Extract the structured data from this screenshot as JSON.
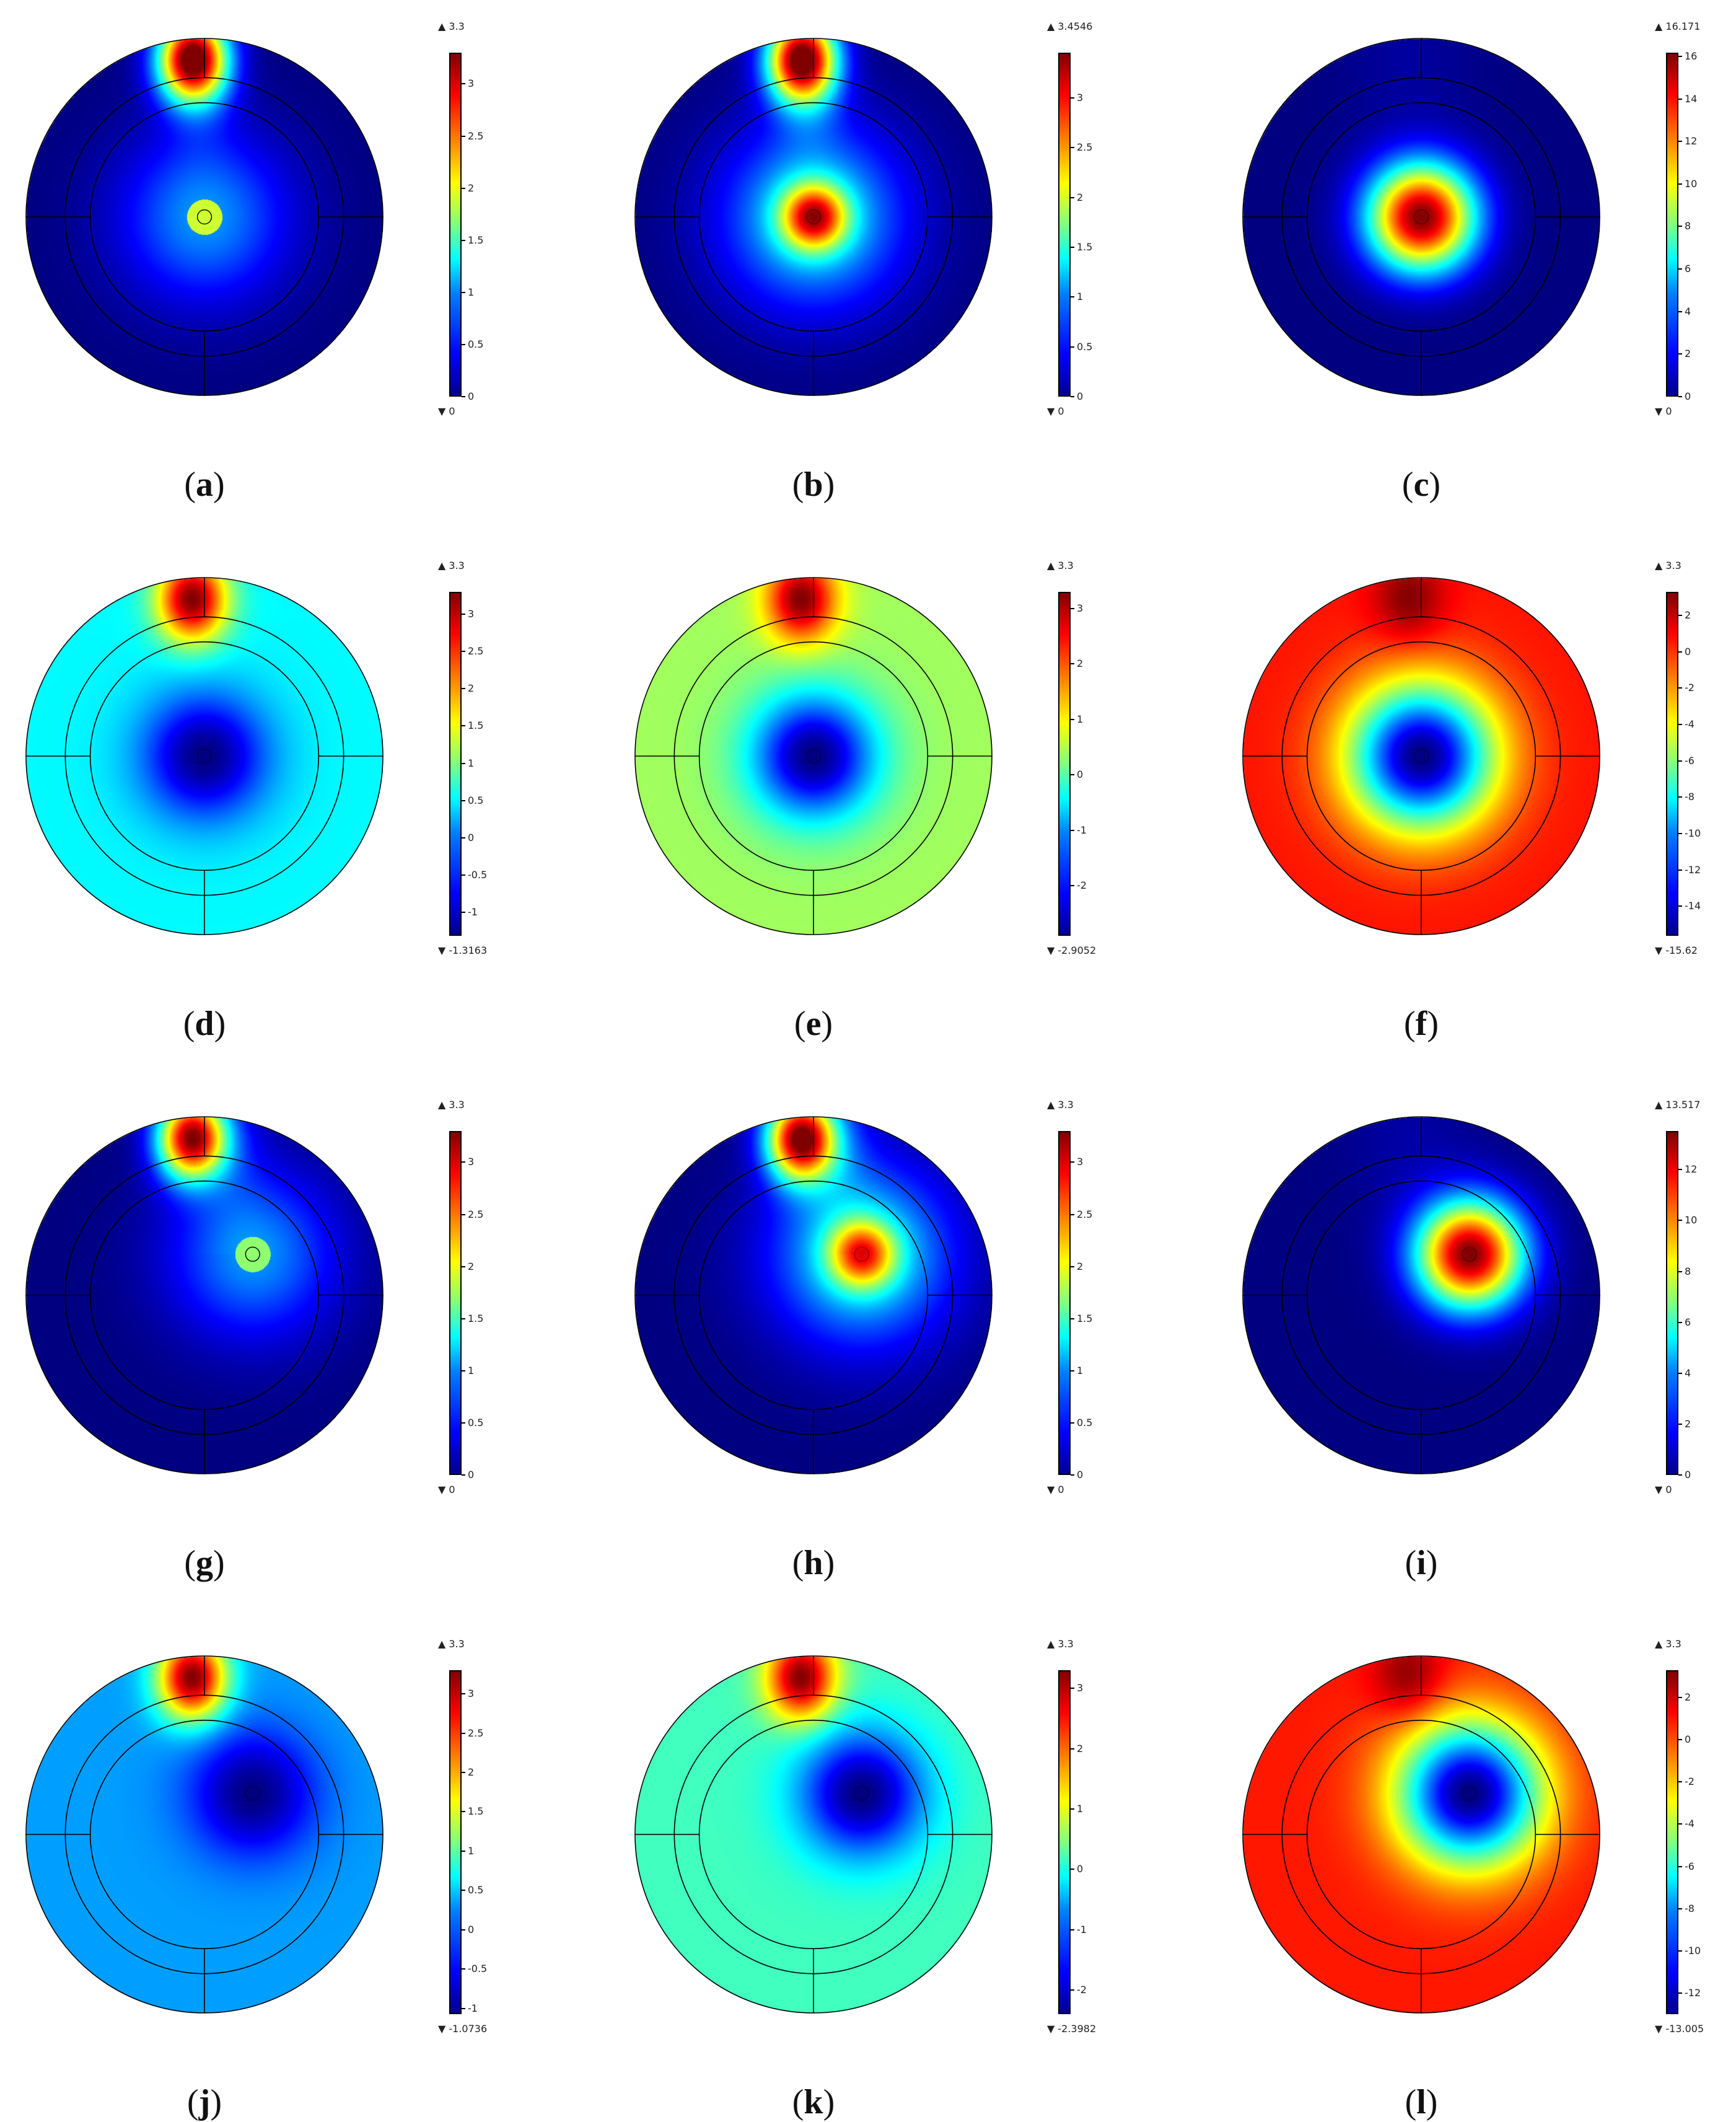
{
  "chart_data": [
    {
      "type": "heatmap",
      "label": "a",
      "fieldmax_text": "3.3",
      "fieldmin_text": "0",
      "vmin": 0,
      "vmax": 3.3,
      "ticks": [
        "0",
        "0.5",
        "1",
        "1.5",
        "2",
        "2.5",
        "3"
      ],
      "tickvalues": [
        0,
        0.5,
        1,
        1.5,
        2,
        2.5,
        3
      ],
      "source": {
        "x": 0,
        "y": 0,
        "radius": 0.18,
        "value": 1.9,
        "outlined": true
      },
      "electrode_value": 3.3,
      "background_value": 0.0,
      "pattern": "conductance"
    },
    {
      "type": "heatmap",
      "label": "b",
      "fieldmax_text": "3.4546",
      "fieldmin_text": "0",
      "vmin": 0,
      "vmax": 3.4546,
      "ticks": [
        "0",
        "0.5",
        "1",
        "1.5",
        "2",
        "2.5",
        "3"
      ],
      "tickvalues": [
        0,
        0.5,
        1,
        1.5,
        2,
        2.5,
        3
      ],
      "source": {
        "x": 0,
        "y": 0,
        "radius": 0.18,
        "value": 3.45,
        "outlined": false
      },
      "electrode_value": 3.3,
      "background_value": 0.0,
      "pattern": "combined"
    },
    {
      "type": "heatmap",
      "label": "c",
      "fieldmax_text": "16.171",
      "fieldmin_text": "0",
      "vmin": 0,
      "vmax": 16.171,
      "ticks": [
        "0",
        "2",
        "4",
        "6",
        "8",
        "10",
        "12",
        "14",
        "16"
      ],
      "tickvalues": [
        0,
        2,
        4,
        6,
        8,
        10,
        12,
        14,
        16
      ],
      "source": {
        "x": 0,
        "y": 0,
        "radius": 0.18,
        "value": 16.171,
        "outlined": false
      },
      "electrode_value": 0.8,
      "background_value": 0.0,
      "pattern": "source"
    },
    {
      "type": "heatmap",
      "label": "d",
      "fieldmax_text": "3.3",
      "fieldmin_text": "-1.3163",
      "vmin": -1.3163,
      "vmax": 3.3,
      "ticks": [
        "-1",
        "-0.5",
        "0",
        "0.5",
        "1",
        "1.5",
        "2",
        "2.5",
        "3"
      ],
      "tickvalues": [
        -1,
        -0.5,
        0,
        0.5,
        1,
        1.5,
        2,
        2.5,
        3
      ],
      "source": {
        "x": 0,
        "y": 0,
        "radius": 0.18,
        "value": -1.3163,
        "outlined": false
      },
      "electrode_value": 3.3,
      "background_value": 0.4,
      "pattern": "difference"
    },
    {
      "type": "heatmap",
      "label": "e",
      "fieldmax_text": "3.3",
      "fieldmin_text": "-2.9052",
      "vmin": -2.9052,
      "vmax": 3.3,
      "ticks": [
        "-2",
        "-1",
        "0",
        "1",
        "2",
        "3"
      ],
      "tickvalues": [
        -2,
        -1,
        0,
        1,
        2,
        3
      ],
      "source": {
        "x": 0,
        "y": 0,
        "radius": 0.18,
        "value": -2.9052,
        "outlined": false
      },
      "electrode_value": 3.3,
      "background_value": 0.4,
      "pattern": "difference"
    },
    {
      "type": "heatmap",
      "label": "f",
      "fieldmax_text": "3.3",
      "fieldmin_text": "-15.62",
      "vmin": -15.62,
      "vmax": 3.3,
      "ticks": [
        "-14",
        "-12",
        "-10",
        "-8",
        "-6",
        "-4",
        "-2",
        "0",
        "2"
      ],
      "tickvalues": [
        -14,
        -12,
        -10,
        -8,
        -6,
        -4,
        -2,
        0,
        2
      ],
      "source": {
        "x": 0,
        "y": 0,
        "radius": 0.18,
        "value": -15.62,
        "outlined": false
      },
      "electrode_value": 3.3,
      "background_value": 0.6,
      "pattern": "difference"
    },
    {
      "type": "heatmap",
      "label": "g",
      "fieldmax_text": "3.3",
      "fieldmin_text": "0",
      "vmin": 0,
      "vmax": 3.3,
      "ticks": [
        "0",
        "0.5",
        "1",
        "1.5",
        "2",
        "2.5",
        "3"
      ],
      "tickvalues": [
        0,
        0.5,
        1,
        1.5,
        2,
        2.5,
        3
      ],
      "source": {
        "x": 0.27,
        "y": 0.23,
        "radius": 0.18,
        "value": 1.7,
        "outlined": true
      },
      "electrode_value": 3.3,
      "background_value": 0.0,
      "pattern": "conductance"
    },
    {
      "type": "heatmap",
      "label": "h",
      "fieldmax_text": "3.3",
      "fieldmin_text": "0",
      "vmin": 0,
      "vmax": 3.3,
      "ticks": [
        "0",
        "0.5",
        "1",
        "1.5",
        "2",
        "2.5",
        "3"
      ],
      "tickvalues": [
        0,
        0.5,
        1,
        1.5,
        2,
        2.5,
        3
      ],
      "source": {
        "x": 0.27,
        "y": 0.23,
        "radius": 0.18,
        "value": 3.0,
        "outlined": false
      },
      "electrode_value": 3.3,
      "background_value": 0.0,
      "pattern": "combined"
    },
    {
      "type": "heatmap",
      "label": "i",
      "fieldmax_text": "13.517",
      "fieldmin_text": "0",
      "vmin": 0,
      "vmax": 13.517,
      "ticks": [
        "0",
        "2",
        "4",
        "6",
        "8",
        "10",
        "12"
      ],
      "tickvalues": [
        0,
        2,
        4,
        6,
        8,
        10,
        12
      ],
      "source": {
        "x": 0.27,
        "y": 0.23,
        "radius": 0.18,
        "value": 13.517,
        "outlined": false
      },
      "electrode_value": 0.8,
      "background_value": 0.0,
      "pattern": "source"
    },
    {
      "type": "heatmap",
      "label": "j",
      "fieldmax_text": "3.3",
      "fieldmin_text": "-1.0736",
      "vmin": -1.0736,
      "vmax": 3.3,
      "ticks": [
        "-1",
        "-0.5",
        "0",
        "0.5",
        "1",
        "1.5",
        "2",
        "2.5",
        "3"
      ],
      "tickvalues": [
        -1,
        -0.5,
        0,
        0.5,
        1,
        1.5,
        2,
        2.5,
        3
      ],
      "source": {
        "x": 0.27,
        "y": 0.23,
        "radius": 0.18,
        "value": -1.0736,
        "outlined": false
      },
      "electrode_value": 3.3,
      "background_value": 0.15,
      "pattern": "difference"
    },
    {
      "type": "heatmap",
      "label": "k",
      "fieldmax_text": "3.3",
      "fieldmin_text": "-2.3982",
      "vmin": -2.3982,
      "vmax": 3.3,
      "ticks": [
        "-2",
        "-1",
        "0",
        "1",
        "2",
        "3"
      ],
      "tickvalues": [
        -2,
        -1,
        0,
        1,
        2,
        3
      ],
      "source": {
        "x": 0.27,
        "y": 0.23,
        "radius": 0.18,
        "value": -2.3982,
        "outlined": false
      },
      "electrode_value": 3.3,
      "background_value": 0.1,
      "pattern": "difference"
    },
    {
      "type": "heatmap",
      "label": "l",
      "fieldmax_text": "3.3",
      "fieldmin_text": "-13.005",
      "vmin": -13.005,
      "vmax": 3.3,
      "ticks": [
        "-12",
        "-10",
        "-8",
        "-6",
        "-4",
        "-2",
        "0",
        "2"
      ],
      "tickvalues": [
        -12,
        -10,
        -8,
        -6,
        -4,
        -2,
        0,
        2
      ],
      "source": {
        "x": 0.27,
        "y": 0.23,
        "radius": 0.18,
        "value": -13.005,
        "outlined": false
      },
      "electrode_value": 3.3,
      "background_value": 0.9,
      "pattern": "difference"
    }
  ],
  "colormap": "jet"
}
